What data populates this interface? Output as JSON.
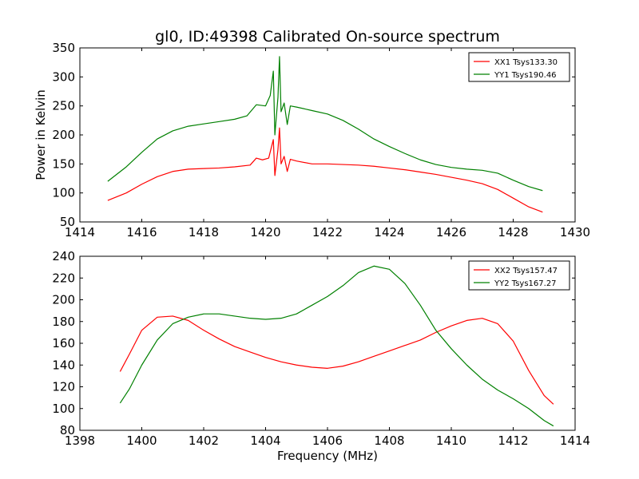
{
  "chart_data": [
    {
      "type": "line",
      "title": "gl0, ID:49398 Calibrated On-source spectrum",
      "xlabel": "",
      "ylabel": "Power in Kelvin",
      "xlim": [
        1414,
        1430
      ],
      "ylim": [
        50,
        350
      ],
      "xticks": [
        1414,
        1416,
        1418,
        1420,
        1422,
        1424,
        1426,
        1428,
        1430
      ],
      "yticks": [
        50,
        100,
        150,
        200,
        250,
        300,
        350
      ],
      "grid": false,
      "legend": "top-right",
      "series": [
        {
          "name": "XX1 Tsys133.30",
          "color": "#ff0000",
          "points": [
            [
              1414.9,
              87
            ],
            [
              1415.5,
              100
            ],
            [
              1416.0,
              115
            ],
            [
              1416.5,
              128
            ],
            [
              1417.0,
              137
            ],
            [
              1417.5,
              141
            ],
            [
              1418.0,
              142
            ],
            [
              1418.5,
              143
            ],
            [
              1419.0,
              145
            ],
            [
              1419.5,
              148
            ],
            [
              1419.7,
              160
            ],
            [
              1419.9,
              157
            ],
            [
              1420.1,
              160
            ],
            [
              1420.25,
              192
            ],
            [
              1420.3,
              130
            ],
            [
              1420.4,
              175
            ],
            [
              1420.45,
              212
            ],
            [
              1420.5,
              150
            ],
            [
              1420.6,
              163
            ],
            [
              1420.7,
              137
            ],
            [
              1420.8,
              158
            ],
            [
              1421.0,
              155
            ],
            [
              1421.5,
              150
            ],
            [
              1422.0,
              150
            ],
            [
              1422.5,
              149
            ],
            [
              1423.0,
              148
            ],
            [
              1423.5,
              146
            ],
            [
              1424.0,
              143
            ],
            [
              1424.5,
              140
            ],
            [
              1425.0,
              136
            ],
            [
              1425.5,
              132
            ],
            [
              1426.0,
              127
            ],
            [
              1426.5,
              122
            ],
            [
              1427.0,
              116
            ],
            [
              1427.5,
              106
            ],
            [
              1428.0,
              91
            ],
            [
              1428.5,
              76
            ],
            [
              1428.95,
              67
            ]
          ]
        },
        {
          "name": "YY1 Tsys190.46",
          "color": "#008000",
          "points": [
            [
              1414.9,
              120
            ],
            [
              1415.5,
              145
            ],
            [
              1416.0,
              170
            ],
            [
              1416.5,
              193
            ],
            [
              1417.0,
              207
            ],
            [
              1417.5,
              215
            ],
            [
              1418.0,
              219
            ],
            [
              1418.5,
              223
            ],
            [
              1419.0,
              227
            ],
            [
              1419.4,
              233
            ],
            [
              1419.7,
              252
            ],
            [
              1420.0,
              250
            ],
            [
              1420.15,
              268
            ],
            [
              1420.25,
              310
            ],
            [
              1420.3,
              200
            ],
            [
              1420.4,
              265
            ],
            [
              1420.45,
              335
            ],
            [
              1420.5,
              240
            ],
            [
              1420.6,
              255
            ],
            [
              1420.7,
              218
            ],
            [
              1420.8,
              250
            ],
            [
              1421.0,
              248
            ],
            [
              1421.5,
              242
            ],
            [
              1422.0,
              236
            ],
            [
              1422.5,
              225
            ],
            [
              1423.0,
              210
            ],
            [
              1423.5,
              193
            ],
            [
              1424.0,
              180
            ],
            [
              1424.5,
              168
            ],
            [
              1425.0,
              157
            ],
            [
              1425.5,
              149
            ],
            [
              1426.0,
              144
            ],
            [
              1426.5,
              141
            ],
            [
              1427.0,
              139
            ],
            [
              1427.5,
              134
            ],
            [
              1428.0,
              122
            ],
            [
              1428.5,
              111
            ],
            [
              1428.95,
              104
            ]
          ]
        }
      ]
    },
    {
      "type": "line",
      "title": "",
      "xlabel": "Frequency (MHz)",
      "ylabel": "",
      "xlim": [
        1398,
        1414
      ],
      "ylim": [
        80,
        240
      ],
      "xticks": [
        1398,
        1400,
        1402,
        1404,
        1406,
        1408,
        1410,
        1412,
        1414
      ],
      "yticks": [
        80,
        100,
        120,
        140,
        160,
        180,
        200,
        220,
        240
      ],
      "grid": false,
      "legend": "top-right",
      "series": [
        {
          "name": "XX2 Tsys157.47",
          "color": "#ff0000",
          "points": [
            [
              1399.3,
              134
            ],
            [
              1399.6,
              150
            ],
            [
              1400.0,
              172
            ],
            [
              1400.5,
              184
            ],
            [
              1401.0,
              185
            ],
            [
              1401.5,
              181
            ],
            [
              1402.0,
              172
            ],
            [
              1402.5,
              164
            ],
            [
              1403.0,
              157
            ],
            [
              1403.5,
              152
            ],
            [
              1404.0,
              147
            ],
            [
              1404.5,
              143
            ],
            [
              1405.0,
              140
            ],
            [
              1405.5,
              138
            ],
            [
              1406.0,
              137
            ],
            [
              1406.5,
              139
            ],
            [
              1407.0,
              143
            ],
            [
              1407.5,
              148
            ],
            [
              1408.0,
              153
            ],
            [
              1408.5,
              158
            ],
            [
              1409.0,
              163
            ],
            [
              1409.5,
              170
            ],
            [
              1410.0,
              176
            ],
            [
              1410.5,
              181
            ],
            [
              1411.0,
              183
            ],
            [
              1411.5,
              178
            ],
            [
              1412.0,
              162
            ],
            [
              1412.5,
              135
            ],
            [
              1413.0,
              112
            ],
            [
              1413.3,
              104
            ]
          ]
        },
        {
          "name": "YY2 Tsys167.27",
          "color": "#008000",
          "points": [
            [
              1399.3,
              105
            ],
            [
              1399.6,
              118
            ],
            [
              1400.0,
              140
            ],
            [
              1400.5,
              163
            ],
            [
              1401.0,
              178
            ],
            [
              1401.5,
              184
            ],
            [
              1402.0,
              187
            ],
            [
              1402.5,
              187
            ],
            [
              1403.0,
              185
            ],
            [
              1403.5,
              183
            ],
            [
              1404.0,
              182
            ],
            [
              1404.5,
              183
            ],
            [
              1405.0,
              187
            ],
            [
              1405.5,
              195
            ],
            [
              1406.0,
              203
            ],
            [
              1406.5,
              213
            ],
            [
              1407.0,
              225
            ],
            [
              1407.5,
              231
            ],
            [
              1408.0,
              228
            ],
            [
              1408.5,
              215
            ],
            [
              1409.0,
              195
            ],
            [
              1409.5,
              172
            ],
            [
              1410.0,
              155
            ],
            [
              1410.5,
              140
            ],
            [
              1411.0,
              127
            ],
            [
              1411.5,
              117
            ],
            [
              1412.0,
              109
            ],
            [
              1412.5,
              100
            ],
            [
              1413.0,
              89
            ],
            [
              1413.3,
              84
            ]
          ]
        }
      ]
    }
  ]
}
